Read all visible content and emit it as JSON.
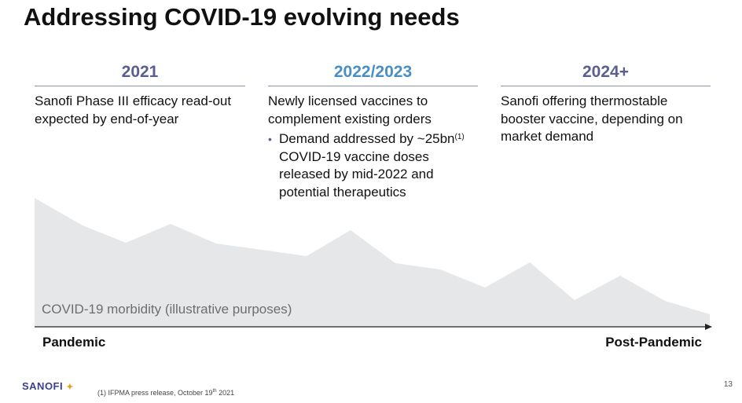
{
  "title": "Addressing COVID-19 evolving needs",
  "columns": [
    {
      "year": "2021",
      "year_color": "#5a5f8e",
      "text": "Sanofi Phase III efficacy read-out expected by end-of-year"
    },
    {
      "year": "2022/2023",
      "year_color": "#4a8fc4",
      "text": "Newly licensed vaccines to complement existing orders",
      "bullet_pre": "Demand addressed by ~25bn",
      "bullet_sup": "(1)",
      "bullet_post": " COVID-19 vaccine doses released by mid-2022 and potential therapeutics"
    },
    {
      "year": "2024+",
      "year_color": "#5a5f8e",
      "text": "Sanofi offering thermostable booster vaccine, depending on market demand"
    }
  ],
  "area_label": "COVID-19 morbidity (illustrative purposes)",
  "axis": {
    "start": "Pandemic",
    "end": "Post-Pandemic"
  },
  "colors": {
    "area_fill": "#e6e7e8",
    "rule": "#8a90a8",
    "brand": "#3b3f8c"
  },
  "footer": {
    "logo": "SANOFI",
    "footnote_pre": "(1) IFPMA press release, October 19",
    "footnote_sup": "th",
    "footnote_post": " 2021",
    "page": "13"
  }
}
